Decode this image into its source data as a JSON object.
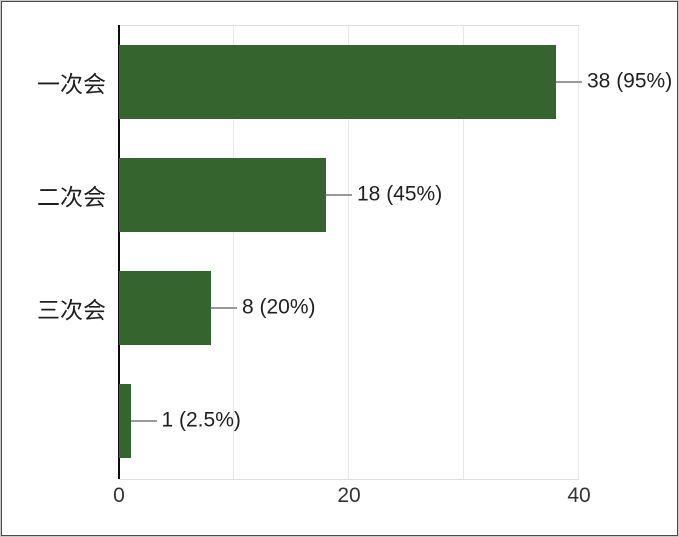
{
  "chart_data": {
    "type": "bar",
    "orientation": "horizontal",
    "title": "",
    "xlabel": "",
    "ylabel": "",
    "categories": [
      "一次会",
      "二次会",
      "三次会",
      ""
    ],
    "values": [
      38,
      18,
      8,
      1
    ],
    "value_labels": [
      "38 (95%)",
      "18 (45%)",
      "8 (20%)",
      "1 (2.5%)"
    ],
    "xlim": [
      0,
      40
    ],
    "x_ticks": [
      "0",
      "20",
      "40"
    ],
    "x_tick_values": [
      0,
      20,
      40
    ],
    "gridline_values": [
      10,
      20,
      30,
      40
    ],
    "grid": "vertical",
    "legend_position": "none",
    "colors": {
      "bar": "#35642f",
      "leader_line": "#999999",
      "axis_line": "#0d0d0d",
      "gridline": "#e7e7e7",
      "text": "#1f1f1f",
      "tick_text": "#333333",
      "frame_border": "#4a4a4a",
      "background": "#ffffff"
    }
  }
}
